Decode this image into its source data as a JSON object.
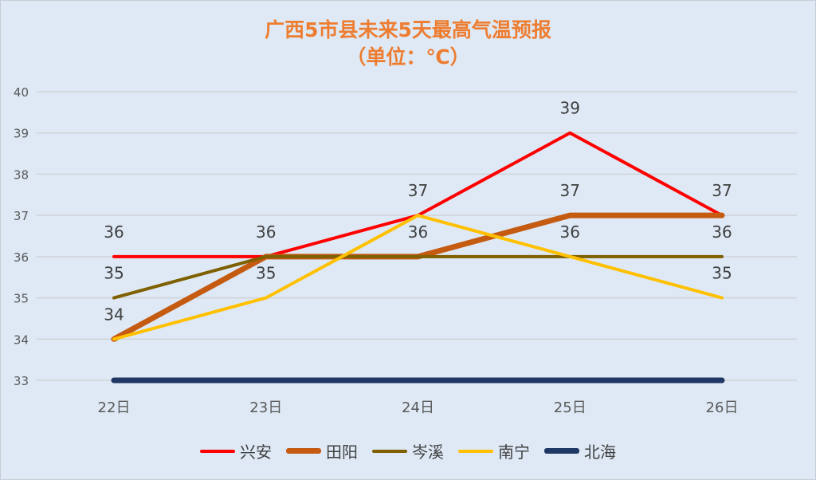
{
  "chart_data": {
    "type": "line",
    "title": "广西5市县未来5天最高气温预报",
    "subtitle": "（单位：℃）",
    "categories": [
      "22日",
      "23日",
      "24日",
      "25日",
      "26日"
    ],
    "ylim": [
      33,
      40
    ],
    "yticks": [
      33,
      34,
      35,
      36,
      37,
      38,
      39,
      40
    ],
    "grid": true,
    "legend_position": "bottom",
    "series": [
      {
        "name": "兴安",
        "values": [
          36,
          36,
          37,
          39,
          37
        ],
        "color": "#ff0000",
        "width": 4
      },
      {
        "name": "田阳",
        "values": [
          34,
          36,
          36,
          37,
          37
        ],
        "color": "#c55a11",
        "width": 7
      },
      {
        "name": "岑溪",
        "values": [
          35,
          36,
          36,
          36,
          36
        ],
        "color": "#7f6000",
        "width": 4
      },
      {
        "name": "南宁",
        "values": [
          34,
          35,
          37,
          36,
          35
        ],
        "color": "#ffc000",
        "width": 4
      },
      {
        "name": "北海",
        "values": [
          33,
          33,
          33,
          33,
          33
        ],
        "color": "#203864",
        "width": 7
      }
    ],
    "data_labels": [
      [
        36,
        35,
        34
      ],
      [
        36,
        35
      ],
      [
        37,
        36
      ],
      [
        39,
        37,
        36
      ],
      [
        37,
        36,
        35
      ]
    ]
  }
}
